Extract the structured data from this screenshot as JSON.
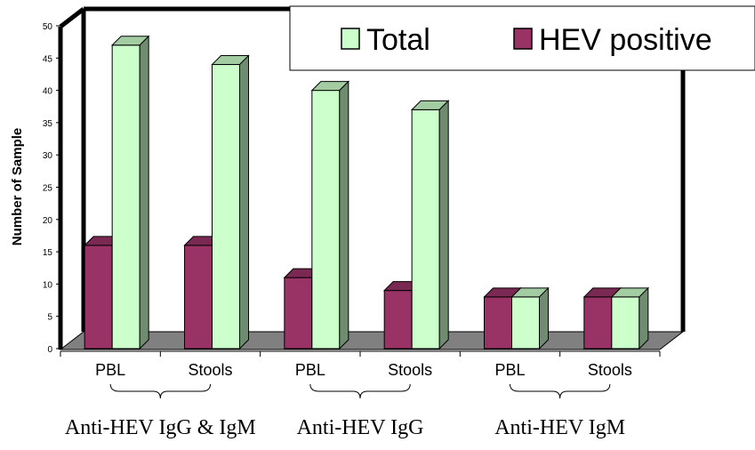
{
  "chart_data": {
    "type": "bar",
    "title": "",
    "ylabel": "Number of Sample",
    "xlabel": "",
    "ylim": [
      0,
      50
    ],
    "yticks": [
      0,
      5,
      10,
      15,
      20,
      25,
      30,
      35,
      40,
      45,
      50
    ],
    "categories": [
      "PBL",
      "Stools",
      "PBL",
      "Stools",
      "PBL",
      "Stools"
    ],
    "groups": [
      "Anti-HEV IgG & IgM",
      "Anti-HEV IgG",
      "Anti-HEV IgM"
    ],
    "series": [
      {
        "name": "Total",
        "color": "#ccffcc",
        "values": [
          47,
          44,
          40,
          37,
          8,
          8
        ]
      },
      {
        "name": "HEV positive",
        "color": "#993366",
        "values": [
          16,
          16,
          11,
          9,
          8,
          8
        ]
      }
    ],
    "legend_position": "top-right",
    "grid": false,
    "style": "3d-column"
  }
}
